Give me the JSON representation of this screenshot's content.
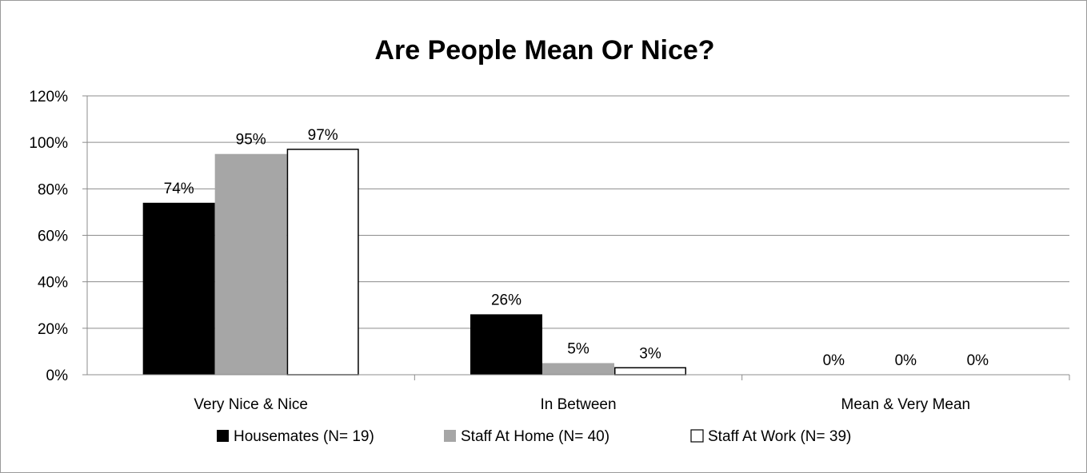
{
  "chart_data": {
    "type": "bar",
    "title": "Are People Mean Or Nice?",
    "categories": [
      "Very Nice & Nice",
      "In Between",
      "Mean & Very Mean"
    ],
    "series": [
      {
        "name": "Housemates (N= 19)",
        "values": [
          74,
          26,
          0
        ],
        "labels": [
          "74%",
          "26%",
          "0%"
        ],
        "color": "#000000"
      },
      {
        "name": "Staff At Home (N= 40)",
        "values": [
          95,
          5,
          0
        ],
        "labels": [
          "95%",
          "5%",
          "0%"
        ],
        "color": "#a6a6a6"
      },
      {
        "name": "Staff At Work (N= 39)",
        "values": [
          97,
          3,
          0
        ],
        "labels": [
          "97%",
          "3%",
          "0%"
        ],
        "color": "#ffffff"
      }
    ],
    "ylim": [
      0,
      120
    ],
    "yticks": [
      0,
      20,
      40,
      60,
      80,
      100,
      120
    ],
    "ytick_labels": [
      "0%",
      "20%",
      "40%",
      "60%",
      "80%",
      "100%",
      "120%"
    ],
    "xlabel": "",
    "ylabel": "",
    "grid": true,
    "legend_position": "bottom"
  }
}
